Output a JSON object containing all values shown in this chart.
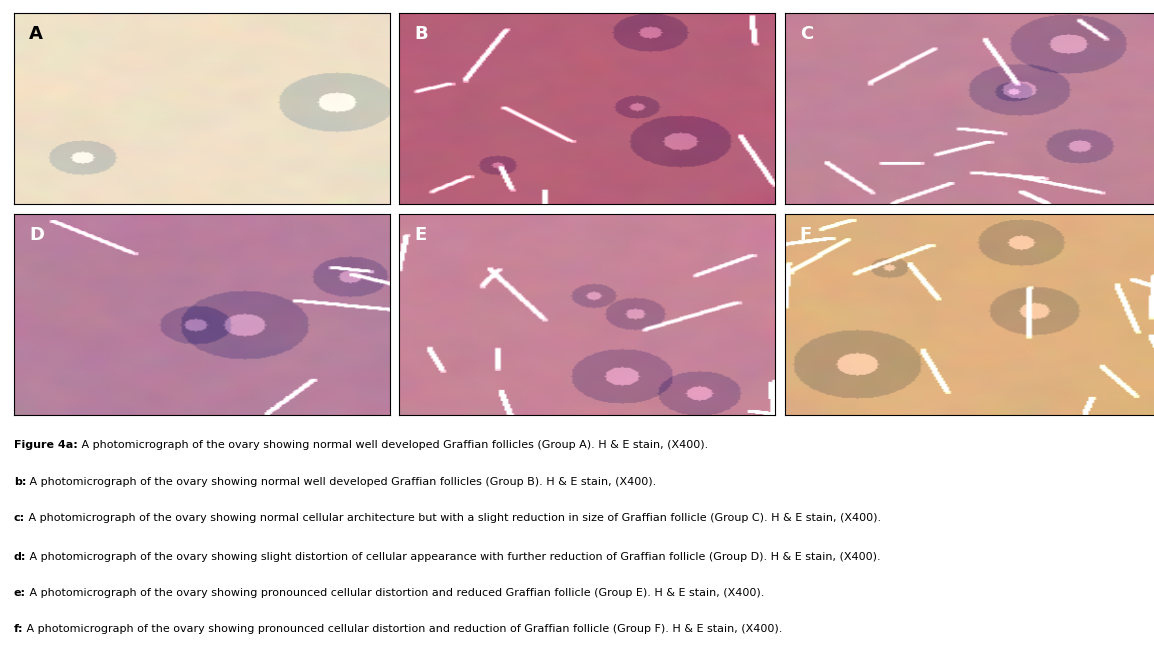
{
  "figure_title_bold": "Figure 4a:",
  "figure_title_rest": " A photomicrograph of the ovary showing normal well developed Graffian follicles (Group A). H & E stain, (X400).",
  "captions": [
    {
      "label_bold": "b:",
      "text": " A photomicrograph of the ovary showing normal well developed Graffian follicles (Group B). H & E stain, (X400)."
    },
    {
      "label_bold": "c:",
      "text": " A photomicrograph of the ovary showing normal cellular architecture but with a slight reduction in size of Graffian follicle (Group C). H & E stain, (X400)."
    },
    {
      "label_bold": "d:",
      "text": " A photomicrograph of the ovary showing slight distortion of cellular appearance with further reduction of Graffian follicle (Group D). H & E stain, (X400)."
    },
    {
      "label_bold": "e:",
      "text": " A photomicrograph of the ovary showing pronounced cellular distortion and reduced Graffian follicle (Group E). H & E stain, (X400)."
    },
    {
      "label_bold": "f:",
      "text": " A photomicrograph of the ovary showing pronounced cellular distortion and reduction of Graffian follicle (Group F). H & E stain, (X400)."
    }
  ],
  "panel_labels": [
    "A",
    "B",
    "C",
    "D",
    "E",
    "F"
  ],
  "panel_label_color_A": "#000000",
  "panel_label_color_BCDEF": "#ffffff",
  "border_color": "#000000",
  "background_color": "#ffffff",
  "caption_fontsize": 8.0,
  "label_fontsize": 13,
  "fig_width": 11.54,
  "fig_height": 6.58,
  "dpi": 100,
  "panel_colors": {
    "A": [
      0.94,
      0.88,
      0.78
    ],
    "B": [
      0.72,
      0.38,
      0.48
    ],
    "C": [
      0.76,
      0.52,
      0.6
    ],
    "D": [
      0.72,
      0.5,
      0.62
    ],
    "E": [
      0.78,
      0.52,
      0.6
    ],
    "F": [
      0.88,
      0.7,
      0.5
    ]
  },
  "panel_detail_colors": {
    "A": [
      0.8,
      0.55,
      0.6
    ],
    "B": [
      0.55,
      0.25,
      0.35
    ],
    "C": [
      0.6,
      0.38,
      0.5
    ],
    "D": [
      0.58,
      0.36,
      0.48
    ],
    "E": [
      0.62,
      0.36,
      0.46
    ],
    "F": [
      0.76,
      0.55,
      0.35
    ]
  }
}
